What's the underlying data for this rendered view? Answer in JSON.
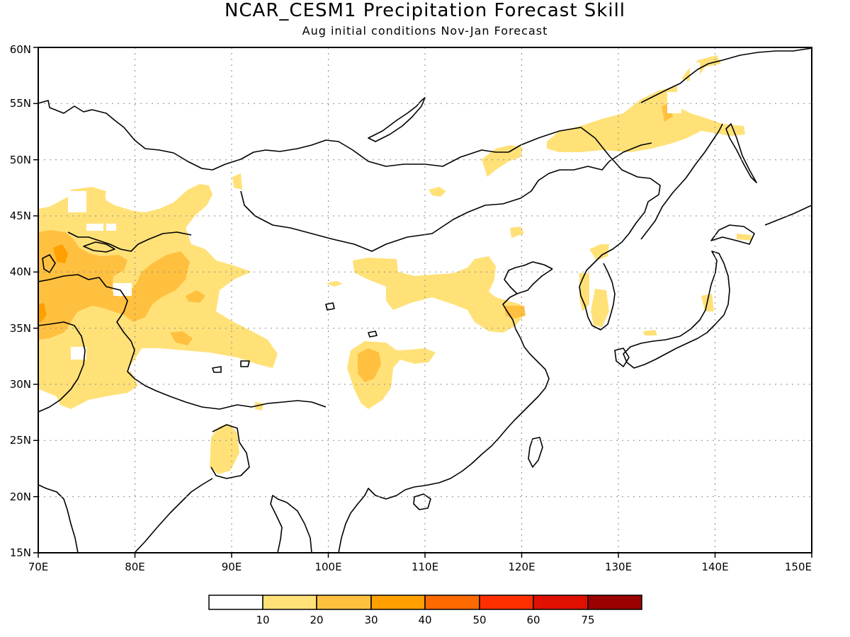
{
  "title": "NCAR_CESM1 Precipitation Forecast Skill",
  "subtitle": "Aug initial conditions  Nov-Jan Forecast",
  "map": {
    "lon_range": [
      70,
      150
    ],
    "lat_range": [
      15,
      60
    ],
    "lon_ticks": [
      "70E",
      "80E",
      "90E",
      "100E",
      "110E",
      "120E",
      "130E",
      "140E",
      "150E"
    ],
    "lat_ticks": [
      "15N",
      "20N",
      "25N",
      "30N",
      "35N",
      "40N",
      "45N",
      "50N",
      "55N",
      "60N"
    ],
    "grid": "dotted"
  },
  "colorbar": {
    "labels": [
      "10",
      "20",
      "30",
      "40",
      "50",
      "60",
      "75"
    ],
    "colors": [
      "#ffffff",
      "#ffe178",
      "#ffc040",
      "#ffa000",
      "#ff6a00",
      "#ff3000",
      "#e01000",
      "#9a0000"
    ]
  },
  "colors": {
    "level_10_20": "#ffe178",
    "level_20_30": "#ffc040",
    "level_30_40": "#ffa000",
    "coast": "#000000"
  }
}
